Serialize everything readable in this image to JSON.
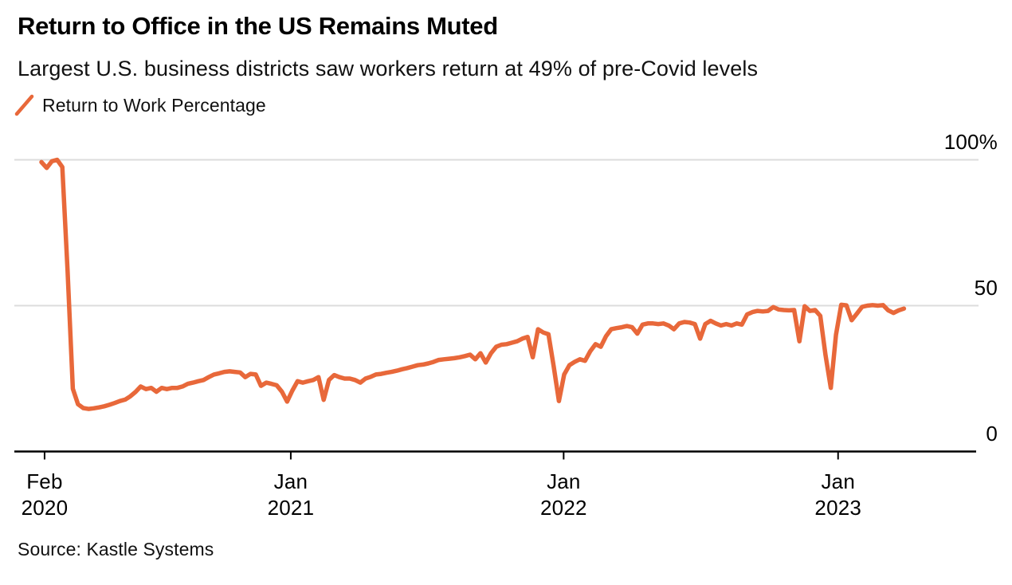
{
  "header": {
    "title": "Return to Office in the US Remains Muted",
    "subtitle": "Largest U.S. business districts saw workers return at 49% of pre-Covid levels"
  },
  "legend": {
    "label": "Return to Work Percentage"
  },
  "source": "Source: Kastle Systems",
  "colors": {
    "line": "#E8683A",
    "grid": "#DCDCDC",
    "axis": "#000000",
    "text": "#000000"
  },
  "chart_data": {
    "type": "line",
    "title": "Return to Office in the US Remains Muted",
    "subtitle": "Largest U.S. business districts saw workers return at 49% of pre-Covid levels",
    "xlabel": "",
    "ylabel": "",
    "ylim": [
      0,
      100
    ],
    "grid": "horizontal gridlines at 50 and 100, black baseline axis at 0",
    "legend_position": "top-left",
    "x_unit": "weekly readings, week 0 = early Feb 2020",
    "series": [
      {
        "name": "Return to Work Percentage",
        "color": "#E8683A",
        "values": [
          99.2,
          97.2,
          99.5,
          100,
          97.5,
          62,
          21.5,
          16.2,
          14.9,
          14.6,
          14.8,
          15.1,
          15.5,
          16,
          16.6,
          17.3,
          17.8,
          18.9,
          20.4,
          22.3,
          21.4,
          21.8,
          20.5,
          21.8,
          21.4,
          21.8,
          21.8,
          22.3,
          23.2,
          23.6,
          24.1,
          24.5,
          25.5,
          26.4,
          26.8,
          27.3,
          27.5,
          27.3,
          27.1,
          25.5,
          26.6,
          26.4,
          22.5,
          23.6,
          23.2,
          22.7,
          20.5,
          17.1,
          20.9,
          24.1,
          23.6,
          24.1,
          24.5,
          25.5,
          17.7,
          24.5,
          26.2,
          25.5,
          25,
          25,
          24.5,
          23.6,
          25,
          25.6,
          26.4,
          26.6,
          27,
          27.3,
          27.7,
          28.2,
          28.6,
          29.1,
          29.6,
          29.8,
          30.2,
          30.7,
          31.4,
          31.6,
          31.8,
          32,
          32.3,
          32.7,
          33.2,
          31.6,
          33.7,
          30.5,
          33.7,
          35.9,
          36.6,
          36.8,
          37.3,
          37.8,
          38.7,
          39.3,
          32.3,
          41.9,
          40.8,
          40.2,
          29.1,
          17.3,
          26.4,
          29.6,
          30.7,
          31.6,
          31.1,
          34.4,
          36.8,
          35.9,
          39.5,
          41.9,
          42.3,
          42.6,
          43,
          42.6,
          40.4,
          43.5,
          43.9,
          43.9,
          43.7,
          43.9,
          43.2,
          41.9,
          43.9,
          44.4,
          44.2,
          43.7,
          38.7,
          43.7,
          44.8,
          43.9,
          43.2,
          43.7,
          43.2,
          43.9,
          43.5,
          47,
          47.8,
          48.2,
          48,
          48.2,
          49.5,
          48.7,
          48.5,
          48.4,
          48.5,
          37.8,
          49.8,
          48.2,
          48.5,
          46.5,
          33,
          21.8,
          40,
          50.3,
          50.1,
          45,
          47.3,
          49.6,
          50,
          50.2,
          50,
          50.2,
          48.4,
          47.5,
          48.4,
          49
        ]
      }
    ],
    "x_ticks": [
      {
        "month": "Feb",
        "year": "2020",
        "week": 0.6
      },
      {
        "month": "Jan",
        "year": "2021",
        "week": 47.7
      },
      {
        "month": "Jan",
        "year": "2022",
        "week": 99.9
      },
      {
        "month": "Jan",
        "year": "2023",
        "week": 152.4
      }
    ],
    "y_ticks": [
      {
        "label": "100%",
        "value": 100
      },
      {
        "label": "50",
        "value": 50
      },
      {
        "label": "0",
        "value": 0
      }
    ]
  }
}
